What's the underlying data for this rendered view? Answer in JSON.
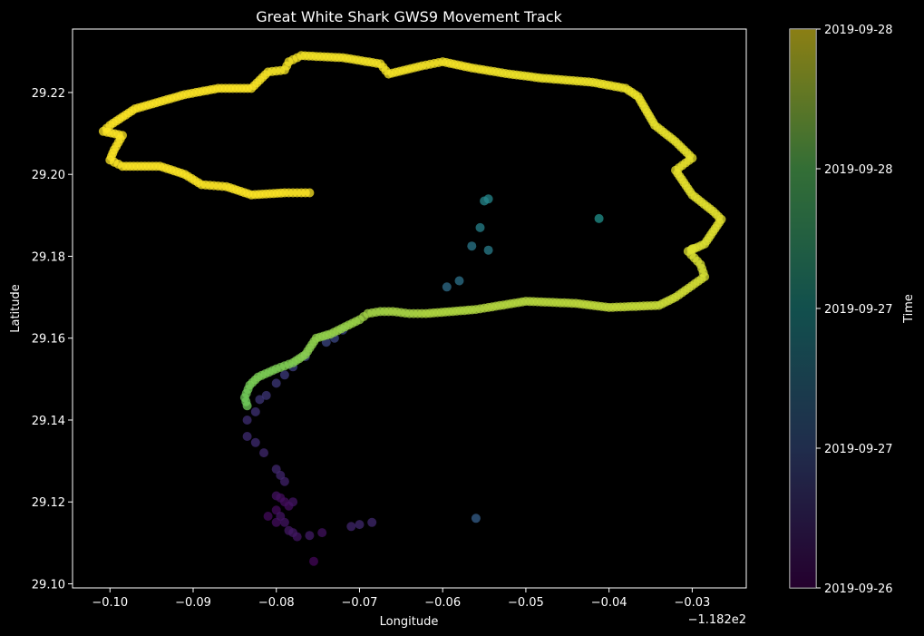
{
  "chart_data": {
    "type": "scatter",
    "title": "Great White Shark GWS9 Movement Track",
    "xlabel": "Longitude",
    "ylabel": "Latitude",
    "x_offset_text": "−1.182e2",
    "xlim": [
      -0.1045,
      -0.0235
    ],
    "ylim": [
      29.099,
      29.2355
    ],
    "x_ticks": [
      -0.1,
      -0.09,
      -0.08,
      -0.07,
      -0.06,
      -0.05,
      -0.04,
      -0.03
    ],
    "x_tick_labels": [
      "−0.10",
      "−0.09",
      "−0.08",
      "−0.07",
      "−0.06",
      "−0.05",
      "−0.04",
      "−0.03"
    ],
    "y_ticks": [
      29.1,
      29.12,
      29.14,
      29.16,
      29.18,
      29.2,
      29.22
    ],
    "y_tick_labels": [
      "29.10",
      "29.12",
      "29.14",
      "29.16",
      "29.18",
      "29.20",
      "29.22"
    ],
    "grid": false,
    "colormap": "viridis",
    "colorbar": {
      "label": "Time",
      "tick_labels": [
        "2019-09-26",
        "2019-09-27",
        "2019-09-27",
        "2019-09-28",
        "2019-09-28"
      ]
    },
    "colors": {
      "background": "#000000",
      "text": "#ffffff"
    },
    "points": [
      [
        -0.0755,
        29.1055,
        0.02
      ],
      [
        -0.0745,
        29.1125,
        0.05
      ],
      [
        -0.0775,
        29.1115,
        0.06
      ],
      [
        -0.0785,
        29.113,
        0.07
      ],
      [
        -0.08,
        29.115,
        0.04
      ],
      [
        -0.081,
        29.1165,
        0.03
      ],
      [
        -0.08,
        29.118,
        0.03
      ],
      [
        -0.0785,
        29.119,
        0.04
      ],
      [
        -0.079,
        29.12,
        0.04
      ],
      [
        -0.0795,
        29.121,
        0.04
      ],
      [
        -0.08,
        29.1215,
        0.05
      ],
      [
        -0.078,
        29.12,
        0.06
      ],
      [
        -0.0795,
        29.1165,
        0.06
      ],
      [
        -0.079,
        29.115,
        0.06
      ],
      [
        -0.078,
        29.1125,
        0.07
      ],
      [
        -0.076,
        29.1118,
        0.08
      ],
      [
        -0.071,
        29.114,
        0.11
      ],
      [
        -0.07,
        29.1145,
        0.12
      ],
      [
        -0.0685,
        29.115,
        0.12
      ],
      [
        -0.056,
        29.116,
        0.3
      ],
      [
        -0.079,
        29.125,
        0.1
      ],
      [
        -0.0795,
        29.1265,
        0.11
      ],
      [
        -0.08,
        29.128,
        0.12
      ],
      [
        -0.0815,
        29.132,
        0.12
      ],
      [
        -0.0825,
        29.1345,
        0.13
      ],
      [
        -0.0835,
        29.136,
        0.13
      ],
      [
        -0.0835,
        29.14,
        0.14
      ],
      [
        -0.0825,
        29.142,
        0.15
      ],
      [
        -0.0812,
        29.146,
        0.16
      ],
      [
        -0.082,
        29.145,
        0.16
      ],
      [
        -0.08,
        29.149,
        0.17
      ],
      [
        -0.079,
        29.151,
        0.18
      ],
      [
        -0.078,
        29.153,
        0.19
      ],
      [
        -0.0765,
        29.1555,
        0.2
      ],
      [
        -0.074,
        29.159,
        0.21
      ],
      [
        -0.073,
        29.16,
        0.22
      ],
      [
        -0.072,
        29.162,
        0.22
      ],
      [
        -0.0595,
        29.1725,
        0.36
      ],
      [
        -0.058,
        29.174,
        0.38
      ],
      [
        -0.0565,
        29.1825,
        0.4
      ],
      [
        -0.0545,
        29.1815,
        0.42
      ],
      [
        -0.0555,
        29.187,
        0.44
      ],
      [
        -0.0545,
        29.194,
        0.46
      ],
      [
        -0.055,
        29.1935,
        0.46
      ],
      [
        -0.0412,
        29.1892,
        0.5
      ],
      [
        -0.03,
        29.1818,
        0.95
      ],
      [
        -0.0835,
        29.1435,
        0.78
      ],
      [
        -0.0838,
        29.1455,
        0.78
      ],
      [
        -0.0832,
        29.1485,
        0.79
      ],
      [
        -0.0822,
        29.1505,
        0.8
      ],
      [
        -0.08,
        29.1525,
        0.8
      ],
      [
        -0.078,
        29.154,
        0.81
      ],
      [
        -0.0765,
        29.156,
        0.82
      ],
      [
        -0.0752,
        29.16,
        0.83
      ],
      [
        -0.0735,
        29.161,
        0.84
      ],
      [
        -0.07,
        29.1645,
        0.85
      ],
      [
        -0.069,
        29.166,
        0.86
      ],
      [
        -0.0675,
        29.1665,
        0.86
      ],
      [
        -0.066,
        29.1665,
        0.87
      ],
      [
        -0.064,
        29.166,
        0.87
      ],
      [
        -0.062,
        29.166,
        0.88
      ],
      [
        -0.056,
        29.167,
        0.88
      ],
      [
        -0.0545,
        29.1675,
        0.89
      ],
      [
        -0.05,
        29.169,
        0.89
      ],
      [
        -0.044,
        29.1685,
        0.9
      ],
      [
        -0.04,
        29.1675,
        0.91
      ],
      [
        -0.034,
        29.168,
        0.92
      ],
      [
        -0.032,
        29.17,
        0.93
      ],
      [
        -0.0285,
        29.175,
        0.94
      ],
      [
        -0.029,
        29.178,
        0.94
      ],
      [
        -0.0305,
        29.1812,
        0.95
      ],
      [
        -0.0285,
        29.183,
        0.95
      ],
      [
        -0.0265,
        29.189,
        0.96
      ],
      [
        -0.0275,
        29.191,
        0.96
      ],
      [
        -0.03,
        29.195,
        0.96
      ],
      [
        -0.032,
        29.201,
        0.97
      ],
      [
        -0.03,
        29.204,
        0.97
      ],
      [
        -0.032,
        29.208,
        0.97
      ],
      [
        -0.0345,
        29.212,
        0.97
      ],
      [
        -0.0365,
        29.219,
        0.98
      ],
      [
        -0.038,
        29.221,
        0.98
      ],
      [
        -0.042,
        29.2225,
        0.98
      ],
      [
        -0.048,
        29.2235,
        0.98
      ],
      [
        -0.052,
        29.2245,
        0.98
      ],
      [
        -0.0565,
        29.226,
        0.99
      ],
      [
        -0.06,
        29.2275,
        0.99
      ],
      [
        -0.0625,
        29.2265,
        0.99
      ],
      [
        -0.0665,
        29.2245,
        0.99
      ],
      [
        -0.0675,
        29.227,
        0.99
      ],
      [
        -0.072,
        29.2285,
        0.99
      ],
      [
        -0.077,
        29.229,
        0.99
      ],
      [
        -0.0785,
        29.2275,
        0.99
      ],
      [
        -0.079,
        29.2255,
        0.99
      ],
      [
        -0.081,
        29.225,
        0.99
      ],
      [
        -0.083,
        29.221,
        1.0
      ],
      [
        -0.087,
        29.221,
        1.0
      ],
      [
        -0.091,
        29.2195,
        1.0
      ],
      [
        -0.097,
        29.216,
        1.0
      ],
      [
        -0.1,
        29.212,
        1.0
      ],
      [
        -0.1008,
        29.2105,
        1.0
      ],
      [
        -0.0985,
        29.2095,
        1.0
      ],
      [
        -0.0995,
        29.206,
        1.0
      ],
      [
        -0.1,
        29.2035,
        1.0
      ],
      [
        -0.0985,
        29.202,
        1.0
      ],
      [
        -0.094,
        29.202,
        1.0
      ],
      [
        -0.091,
        29.2,
        1.0
      ],
      [
        -0.089,
        29.1975,
        1.0
      ],
      [
        -0.086,
        29.197,
        1.0
      ],
      [
        -0.083,
        29.195,
        1.0
      ],
      [
        -0.079,
        29.1955,
        1.0
      ],
      [
        -0.076,
        29.1955,
        1.0
      ]
    ]
  }
}
